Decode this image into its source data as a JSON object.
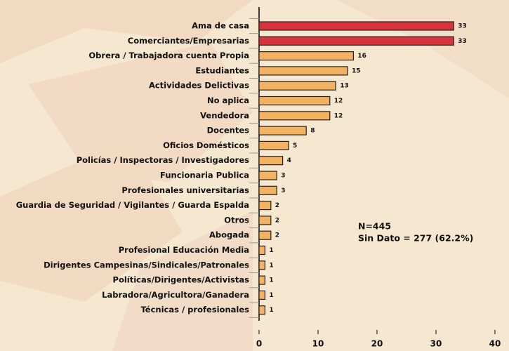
{
  "chart_data": {
    "type": "barh",
    "categories": [
      "Ama de casa",
      "Comerciantes/Empresarias",
      "Obrera / Trabajadora cuenta Propia",
      "Estudiantes",
      "Actividades Delictivas",
      "No aplica",
      "Vendedora",
      "Docentes",
      "Oficios Domésticos",
      "Policías / Inspectoras / Investigadores",
      "Funcionaria Publica",
      "Profesionales universitarias",
      "Guardia de Seguridad / Vigilantes / Guarda Espalda",
      "Otros",
      "Abogada",
      "Profesional Educación Media",
      "Dirigentes Campesinas/Sindicales/Patronales",
      "Políticas/Dirigentes/Activistas",
      "Labradora/Agricultora/Ganadera",
      "Técnicas / profesionales"
    ],
    "values": [
      33,
      33,
      16,
      15,
      13,
      12,
      12,
      8,
      5,
      4,
      3,
      3,
      2,
      2,
      2,
      1,
      1,
      1,
      1,
      1
    ],
    "colors": [
      "#d8323c",
      "#d8323c",
      "#f2b262",
      "#f2b262",
      "#f2b262",
      "#f2b262",
      "#f2b262",
      "#f2b262",
      "#f2b262",
      "#f2b262",
      "#f2b262",
      "#f2b262",
      "#f2b262",
      "#f2b262",
      "#f2b262",
      "#f2b262",
      "#f2b262",
      "#f2b262",
      "#f2b262",
      "#f2b262"
    ],
    "xlim": [
      0,
      40
    ],
    "xticks": [
      0,
      10,
      20,
      30,
      40
    ],
    "annotations": [
      "N=445",
      "Sin Dato = 277 (62.2%)"
    ]
  }
}
